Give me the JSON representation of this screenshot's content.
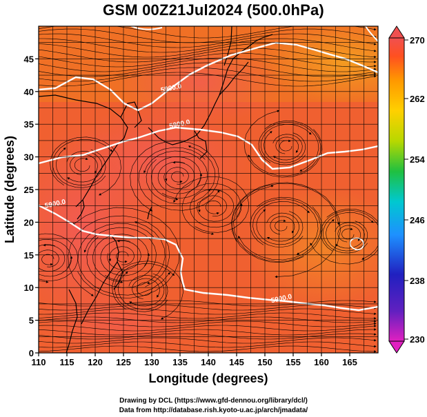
{
  "title": "GSM 00Z21Jul2024 (500.0hPa)",
  "axes": {
    "xlabel": "Longitude (degrees)",
    "ylabel": "Latitude  (degrees)",
    "x_ticks": [
      "110",
      "115",
      "120",
      "125",
      "130",
      "135",
      "140",
      "145",
      "150",
      "155",
      "160",
      "165"
    ],
    "y_ticks": [
      "0",
      "5",
      "10",
      "15",
      "20",
      "25",
      "30",
      "35",
      "40",
      "45"
    ],
    "xlim": [
      110,
      170
    ],
    "ylim": [
      0,
      50
    ]
  },
  "colorbar": {
    "ticks": [
      "230",
      "238",
      "246",
      "254",
      "262",
      "270"
    ],
    "range": [
      230,
      270
    ],
    "colors": [
      "#e020c0",
      "#2020c0",
      "#1e90ff",
      "#00c8d0",
      "#20c040",
      "#b8d800",
      "#ffd000",
      "#ff9800",
      "#ff5020",
      "#f05050"
    ]
  },
  "contours": [
    {
      "label": "5900.0",
      "lon": 133.5,
      "lat": 40.2
    },
    {
      "label": "5900.0",
      "lon": 135.0,
      "lat": 34.7
    },
    {
      "label": "5900.0",
      "lon": 113.0,
      "lat": 22.5
    },
    {
      "label": "5900.0",
      "lon": 153.0,
      "lat": 8.0
    }
  ],
  "credits": {
    "line1": "Drawing by DCL (https://www.gfd-dennou.org/library/dcl/)",
    "line2": "Data from http://database.rish.kyoto-u.ac.jp/arch/jmadata/"
  }
}
